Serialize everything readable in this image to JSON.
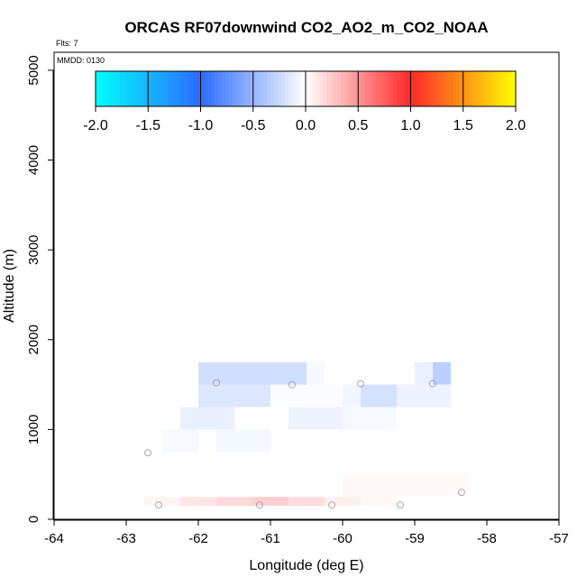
{
  "chart_data": {
    "type": "heatmap",
    "title": "ORCAS RF07downwind CO2_AO2_m_CO2_NOAA",
    "flights_label": "Flts: 7",
    "date_label": "MMDD: 0130",
    "xlabel": "Longitude (deg E)",
    "ylabel": "Altitude (m)",
    "xlim": [
      -64,
      -57
    ],
    "ylim": [
      0,
      5200
    ],
    "x_ticks": [
      -64,
      -63,
      -62,
      -61,
      -60,
      -59,
      -58,
      -57
    ],
    "y_ticks": [
      0,
      1000,
      2000,
      3000,
      4000,
      5000
    ],
    "colorbar": {
      "range": [
        -2,
        2
      ],
      "ticks": [
        -2.0,
        -1.5,
        -1.0,
        -0.5,
        0.0,
        0.5,
        1.0,
        1.5,
        2.0
      ],
      "tick_labels": [
        "-2.0",
        "-1.5",
        "-1.0",
        "-0.5",
        "0.0",
        "0.5",
        "1.0",
        "1.5",
        "2.0"
      ],
      "colors": [
        "#00ffff",
        "#2a6cff",
        "#ffffff",
        "#ff2828",
        "#ffff00"
      ]
    },
    "cells": [
      {
        "lon0": -62.75,
        "lon1": -62.25,
        "alt0": 150,
        "alt1": 250,
        "value": 0.05
      },
      {
        "lon0": -62.25,
        "lon1": -61.75,
        "alt0": 150,
        "alt1": 250,
        "value": 0.12
      },
      {
        "lon0": -61.75,
        "lon1": -61.25,
        "alt0": 150,
        "alt1": 250,
        "value": 0.17
      },
      {
        "lon0": -61.25,
        "lon1": -60.75,
        "alt0": 150,
        "alt1": 250,
        "value": 0.22
      },
      {
        "lon0": -60.75,
        "lon1": -60.25,
        "alt0": 150,
        "alt1": 250,
        "value": 0.16
      },
      {
        "lon0": -60.25,
        "lon1": -59.75,
        "alt0": 150,
        "alt1": 250,
        "value": 0.07
      },
      {
        "lon0": -59.75,
        "lon1": -59.25,
        "alt0": 150,
        "alt1": 250,
        "value": 0.04
      },
      {
        "lon0": -60.0,
        "lon1": -58.25,
        "alt0": 250,
        "alt1": 500,
        "value": 0.03
      },
      {
        "lon0": -62.5,
        "lon1": -62.0,
        "alt0": 750,
        "alt1": 1000,
        "value": -0.04
      },
      {
        "lon0": -61.75,
        "lon1": -61.0,
        "alt0": 750,
        "alt1": 1000,
        "value": -0.05
      },
      {
        "lon0": -62.25,
        "lon1": -61.5,
        "alt0": 1000,
        "alt1": 1250,
        "value": -0.1
      },
      {
        "lon0": -60.75,
        "lon1": -60.0,
        "alt0": 1000,
        "alt1": 1250,
        "value": -0.08
      },
      {
        "lon0": -60.0,
        "lon1": -59.25,
        "alt0": 1000,
        "alt1": 1250,
        "value": -0.04
      },
      {
        "lon0": -62.0,
        "lon1": -61.0,
        "alt0": 1250,
        "alt1": 1500,
        "value": -0.16
      },
      {
        "lon0": -61.0,
        "lon1": -60.0,
        "alt0": 1250,
        "alt1": 1500,
        "value": -0.02
      },
      {
        "lon0": -60.0,
        "lon1": -59.75,
        "alt0": 1250,
        "alt1": 1500,
        "value": -0.06
      },
      {
        "lon0": -59.75,
        "lon1": -59.25,
        "alt0": 1250,
        "alt1": 1500,
        "value": -0.2
      },
      {
        "lon0": -59.25,
        "lon1": -58.5,
        "alt0": 1250,
        "alt1": 1500,
        "value": -0.08
      },
      {
        "lon0": -62.0,
        "lon1": -60.5,
        "alt0": 1500,
        "alt1": 1750,
        "value": -0.22
      },
      {
        "lon0": -60.5,
        "lon1": -60.25,
        "alt0": 1500,
        "alt1": 1750,
        "value": -0.04
      },
      {
        "lon0": -59.0,
        "lon1": -58.75,
        "alt0": 1500,
        "alt1": 1750,
        "value": -0.1
      },
      {
        "lon0": -58.75,
        "lon1": -58.5,
        "alt0": 1500,
        "alt1": 1750,
        "value": -0.32
      }
    ],
    "points": [
      {
        "lon": -62.55,
        "alt": 160
      },
      {
        "lon": -61.15,
        "alt": 160
      },
      {
        "lon": -60.15,
        "alt": 160
      },
      {
        "lon": -59.2,
        "alt": 160
      },
      {
        "lon": -58.35,
        "alt": 300
      },
      {
        "lon": -62.7,
        "alt": 740
      },
      {
        "lon": -61.75,
        "alt": 1520
      },
      {
        "lon": -60.7,
        "alt": 1500
      },
      {
        "lon": -59.75,
        "alt": 1510
      },
      {
        "lon": -58.75,
        "alt": 1510
      }
    ]
  }
}
